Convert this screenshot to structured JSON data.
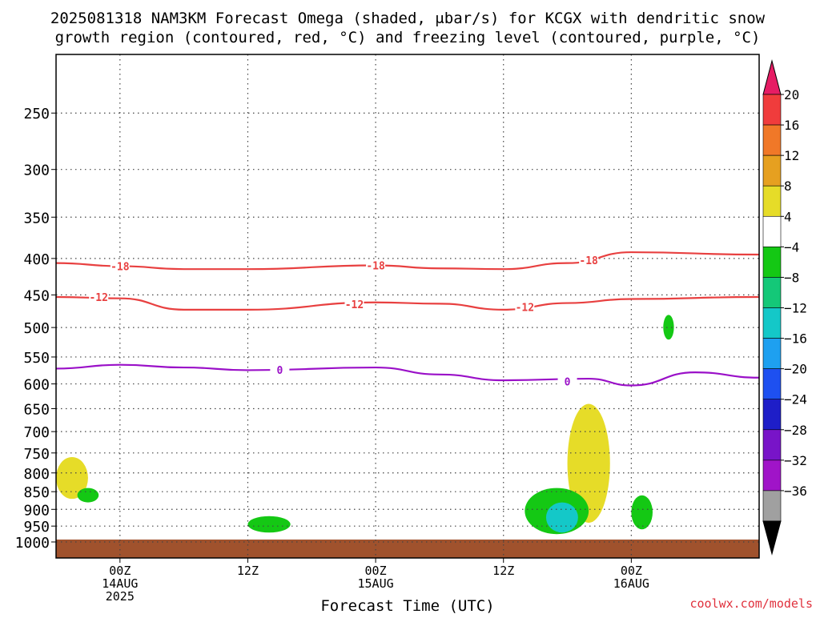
{
  "title_line1": "2025081318 NAM3KM Forecast Omega (shaded, μbar/s) for KCGX with dendritic snow",
  "title_line2": "growth region (contoured, red, °C) and freezing level (contoured, purple, °C)",
  "watermark": "coolwx.com/models",
  "chart_data": {
    "type": "heatmap",
    "title": "2025081318 NAM3KM Forecast Omega (shaded, μbar/s) for KCGX with dendritic snow growth region (contoured, red, °C) and freezing level (contoured, purple, °C)",
    "xlabel": "Forecast Time (UTC)",
    "ylabel": "",
    "y_scale": "log-pressure (inverted)",
    "xlim": [
      "2025-08-13T18:00Z",
      "2025-08-16T12:00Z"
    ],
    "ylim": [
      1000,
      200
    ],
    "grid": true,
    "x_ticks": [
      {
        "t": "2025-08-14T00:00Z",
        "label": "00Z",
        "date": "14AUG",
        "year": "2025"
      },
      {
        "t": "2025-08-14T12:00Z",
        "label": "12Z",
        "date": "",
        "year": ""
      },
      {
        "t": "2025-08-15T00:00Z",
        "label": "00Z",
        "date": "15AUG",
        "year": ""
      },
      {
        "t": "2025-08-15T12:00Z",
        "label": "12Z",
        "date": "",
        "year": ""
      },
      {
        "t": "2025-08-16T00:00Z",
        "label": "00Z",
        "date": "16AUG",
        "year": ""
      }
    ],
    "y_ticks": [
      250,
      300,
      350,
      400,
      450,
      500,
      550,
      600,
      650,
      700,
      750,
      800,
      850,
      900,
      950,
      1000
    ],
    "colorbar": {
      "labels": [
        "20",
        "16",
        "12",
        "8",
        "4",
        "−4",
        "−8",
        "−12",
        "−16",
        "−20",
        "−24",
        "−28",
        "−32",
        "−36"
      ],
      "colors": [
        "#e61c64",
        "#f03c3c",
        "#f07828",
        "#e6a020",
        "#e6dc28",
        "#ffffff",
        "#14c814",
        "#14c878",
        "#14c8c8",
        "#1ea0f0",
        "#1e50f0",
        "#1e1ec8",
        "#7814c8",
        "#a014c8",
        "#a0a0a0",
        "#000000"
      ]
    },
    "contours": [
      {
        "name": "-18",
        "color": "#e84040",
        "points": [
          [
            "2025-08-13T18:00Z",
            406
          ],
          [
            "2025-08-14T00:00Z",
            410
          ],
          [
            "2025-08-14T06:00Z",
            414
          ],
          [
            "2025-08-14T12:00Z",
            414
          ],
          [
            "2025-08-15T00:00Z",
            409
          ],
          [
            "2025-08-15T06:00Z",
            413
          ],
          [
            "2025-08-15T12:00Z",
            414
          ],
          [
            "2025-08-15T18:00Z",
            406
          ],
          [
            "2025-08-16T00:00Z",
            392
          ],
          [
            "2025-08-16T12:00Z",
            395
          ]
        ],
        "labels": [
          [
            "2025-08-14T00:00Z",
            410
          ],
          [
            "2025-08-15T00:00Z",
            409
          ],
          [
            "2025-08-15T20:00Z",
            402
          ]
        ]
      },
      {
        "name": "-12",
        "color": "#e84040",
        "points": [
          [
            "2025-08-13T18:00Z",
            453
          ],
          [
            "2025-08-14T00:00Z",
            455
          ],
          [
            "2025-08-14T06:00Z",
            472
          ],
          [
            "2025-08-14T12:00Z",
            472
          ],
          [
            "2025-08-15T00:00Z",
            461
          ],
          [
            "2025-08-15T06:00Z",
            463
          ],
          [
            "2025-08-15T12:00Z",
            472
          ],
          [
            "2025-08-15T18:00Z",
            462
          ],
          [
            "2025-08-16T00:00Z",
            456
          ],
          [
            "2025-08-16T12:00Z",
            453
          ]
        ],
        "labels": [
          [
            "2025-08-13T22:00Z",
            453
          ],
          [
            "2025-08-14T22:00Z",
            464
          ],
          [
            "2025-08-15T14:00Z",
            468
          ]
        ]
      },
      {
        "name": "0",
        "color": "#9a10c8",
        "points": [
          [
            "2025-08-13T18:00Z",
            571
          ],
          [
            "2025-08-14T00:00Z",
            564
          ],
          [
            "2025-08-14T06:00Z",
            569
          ],
          [
            "2025-08-14T12:00Z",
            574
          ],
          [
            "2025-08-15T00:00Z",
            569
          ],
          [
            "2025-08-15T06:00Z",
            582
          ],
          [
            "2025-08-15T12:00Z",
            593
          ],
          [
            "2025-08-15T20:00Z",
            590
          ],
          [
            "2025-08-16T00:00Z",
            603
          ],
          [
            "2025-08-16T06:00Z",
            578
          ],
          [
            "2025-08-16T12:00Z",
            588
          ]
        ],
        "labels": [
          [
            "2025-08-14T15:00Z",
            573
          ],
          [
            "2025-08-15T18:00Z",
            595
          ]
        ]
      }
    ],
    "omega_regions": [
      {
        "value_range": [
          4,
          8
        ],
        "color": "#e6dc28",
        "time_range": [
          "2025-08-13T18:00Z",
          "2025-08-13T21:00Z"
        ],
        "pressure_range": [
          760,
          870
        ]
      },
      {
        "value_range": [
          4,
          8
        ],
        "color": "#e6dc28",
        "time_range": [
          "2025-08-15T18:00Z",
          "2025-08-15T22:00Z"
        ],
        "pressure_range": [
          640,
          940
        ]
      },
      {
        "value_range": [
          -8,
          -4
        ],
        "color": "#14c814",
        "time_range": [
          "2025-08-15T14:00Z",
          "2025-08-15T20:00Z"
        ],
        "pressure_range": [
          840,
          975
        ]
      },
      {
        "value_range": [
          -16,
          -12
        ],
        "color": "#14c8c8",
        "time_range": [
          "2025-08-15T16:00Z",
          "2025-08-15T19:00Z"
        ],
        "pressure_range": [
          880,
          970
        ]
      },
      {
        "value_range": [
          -8,
          -4
        ],
        "color": "#14c814",
        "time_range": [
          "2025-08-14T12:00Z",
          "2025-08-14T16:00Z"
        ],
        "pressure_range": [
          920,
          970
        ]
      },
      {
        "value_range": [
          -8,
          -4
        ],
        "color": "#14c814",
        "time_range": [
          "2025-08-16T00:00Z",
          "2025-08-16T02:00Z"
        ],
        "pressure_range": [
          860,
          960
        ]
      },
      {
        "value_range": [
          -8,
          -4
        ],
        "color": "#14c814",
        "time_range": [
          "2025-08-16T03:00Z",
          "2025-08-16T04:00Z"
        ],
        "pressure_range": [
          480,
          520
        ]
      },
      {
        "value_range": [
          -8,
          -4
        ],
        "color": "#14c814",
        "time_range": [
          "2025-08-13T20:00Z",
          "2025-08-13T22:00Z"
        ],
        "pressure_range": [
          840,
          880
        ]
      }
    ],
    "ground_color": "#a0522d"
  }
}
